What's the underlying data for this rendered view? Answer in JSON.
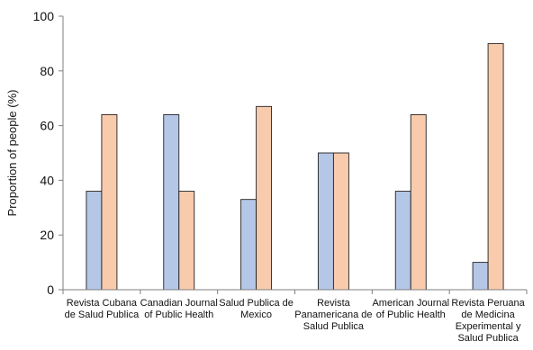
{
  "chart_data": {
    "type": "bar",
    "title": "",
    "xlabel": "",
    "ylabel": "Proportion of people (%)",
    "ylim": [
      0,
      100
    ],
    "yticks": [
      0,
      20,
      40,
      60,
      80,
      100
    ],
    "grid": false,
    "legend": "none",
    "categories": [
      "Revista Cubana de Salud Publica",
      "Canadian Journal of Public Health",
      "Salud Publica de Mexico",
      "Revista Panamericana de Salud Publica",
      "American Journal of Public Health",
      "Revista Peruana de Medicina Experimental y Salud Publica"
    ],
    "category_lines": [
      [
        "Revista Cubana",
        "de Salud Publica"
      ],
      [
        "Canadian Journal",
        "of Public Health"
      ],
      [
        "Salud Publica de",
        "Mexico"
      ],
      [
        "Revista",
        "Panamericana de",
        "Salud Publica"
      ],
      [
        "American Journal",
        "of Public Health"
      ],
      [
        "Revista Peruana",
        "de Medicina",
        "Experimental y",
        "Salud Publica"
      ]
    ],
    "series": [
      {
        "values": [
          36,
          64,
          33,
          50,
          36,
          10
        ],
        "color": "#b4c7e7"
      },
      {
        "values": [
          64,
          36,
          67,
          50,
          64,
          90
        ],
        "color": "#f8cbad"
      }
    ]
  }
}
